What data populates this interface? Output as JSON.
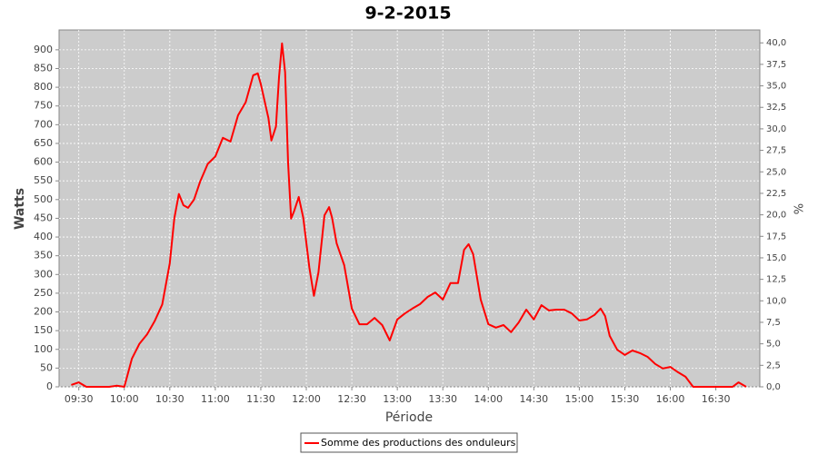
{
  "chart_data": {
    "type": "line",
    "title": "9-2-2015",
    "xlabel": "Période",
    "ylabel": "Watts",
    "y2label": "%",
    "x": [
      "09:25",
      "09:30",
      "09:35",
      "09:50",
      "09:55",
      "10:00",
      "10:05",
      "10:10",
      "10:15",
      "10:20",
      "10:25",
      "10:30",
      "10:33",
      "10:36",
      "10:39",
      "10:42",
      "10:46",
      "10:50",
      "10:55",
      "11:00",
      "11:05",
      "11:10",
      "11:15",
      "11:20",
      "11:25",
      "11:28",
      "11:30",
      "11:35",
      "11:37",
      "11:40",
      "11:42",
      "11:44",
      "11:46",
      "11:48",
      "11:50",
      "11:52",
      "11:55",
      "11:58",
      "12:02",
      "12:05",
      "12:08",
      "12:12",
      "12:15",
      "12:17",
      "12:20",
      "12:25",
      "12:30",
      "12:35",
      "12:40",
      "12:45",
      "12:50",
      "12:55",
      "13:00",
      "13:05",
      "13:10",
      "13:15",
      "13:20",
      "13:25",
      "13:30",
      "13:35",
      "13:40",
      "13:44",
      "13:47",
      "13:50",
      "13:55",
      "14:00",
      "14:05",
      "14:10",
      "14:15",
      "14:20",
      "14:25",
      "14:30",
      "14:35",
      "14:40",
      "14:45",
      "14:50",
      "14:55",
      "15:00",
      "15:05",
      "15:10",
      "15:14",
      "15:17",
      "15:20",
      "15:25",
      "15:30",
      "15:35",
      "15:40",
      "15:45",
      "15:50",
      "15:55",
      "16:00",
      "16:05",
      "16:10",
      "16:15",
      "16:20",
      "16:41",
      "16:45",
      "16:50"
    ],
    "series": [
      {
        "name": "Somme des productions des onduleurs",
        "color": "#ff0000",
        "values": [
          5,
          12,
          0,
          0,
          3,
          0,
          75,
          115,
          140,
          175,
          220,
          330,
          450,
          515,
          485,
          478,
          500,
          548,
          595,
          615,
          665,
          655,
          725,
          760,
          832,
          837,
          808,
          718,
          658,
          695,
          827,
          917,
          840,
          597,
          449,
          470,
          507,
          451,
          318,
          243,
          306,
          458,
          480,
          451,
          383,
          325,
          209,
          167,
          167,
          184,
          165,
          124,
          180,
          196,
          209,
          221,
          240,
          252,
          233,
          277,
          277,
          366,
          381,
          354,
          233,
          167,
          158,
          165,
          146,
          172,
          206,
          180,
          218,
          204,
          206,
          206,
          196,
          177,
          180,
          192,
          209,
          189,
          136,
          99,
          85,
          97,
          90,
          80,
          61,
          49,
          53,
          39,
          27,
          0,
          0,
          0,
          12,
          0
        ]
      }
    ],
    "xlim": [
      "09:17",
      "16:59"
    ],
    "xticks": [
      "09:30",
      "10:00",
      "10:30",
      "11:00",
      "11:30",
      "12:00",
      "12:30",
      "13:00",
      "13:30",
      "14:00",
      "14:30",
      "15:00",
      "15:30",
      "16:00",
      "16:30"
    ],
    "ylim": [
      0,
      953
    ],
    "yticks": [
      0,
      50,
      100,
      150,
      200,
      250,
      300,
      350,
      400,
      450,
      500,
      550,
      600,
      650,
      700,
      750,
      800,
      850,
      900
    ],
    "y2lim": [
      0,
      41.5
    ],
    "y2ticks": [
      {
        "value": 0,
        "label": "0,0"
      },
      {
        "value": 2.5,
        "label": "2,5"
      },
      {
        "value": 5,
        "label": "5,0"
      },
      {
        "value": 7.5,
        "label": "7,5"
      },
      {
        "value": 10,
        "label": "10,0"
      },
      {
        "value": 12.5,
        "label": "12,5"
      },
      {
        "value": 15,
        "label": "15,0"
      },
      {
        "value": 17.5,
        "label": "17,5"
      },
      {
        "value": 20,
        "label": "20,0"
      },
      {
        "value": 22.5,
        "label": "22,5"
      },
      {
        "value": 25,
        "label": "25,0"
      },
      {
        "value": 27.5,
        "label": "27,5"
      },
      {
        "value": 30,
        "label": "30,0"
      },
      {
        "value": 32.5,
        "label": "32,5"
      },
      {
        "value": 35,
        "label": "35,0"
      },
      {
        "value": 37.5,
        "label": "37,5"
      },
      {
        "value": 40,
        "label": "40,0"
      }
    ],
    "grid": true
  }
}
